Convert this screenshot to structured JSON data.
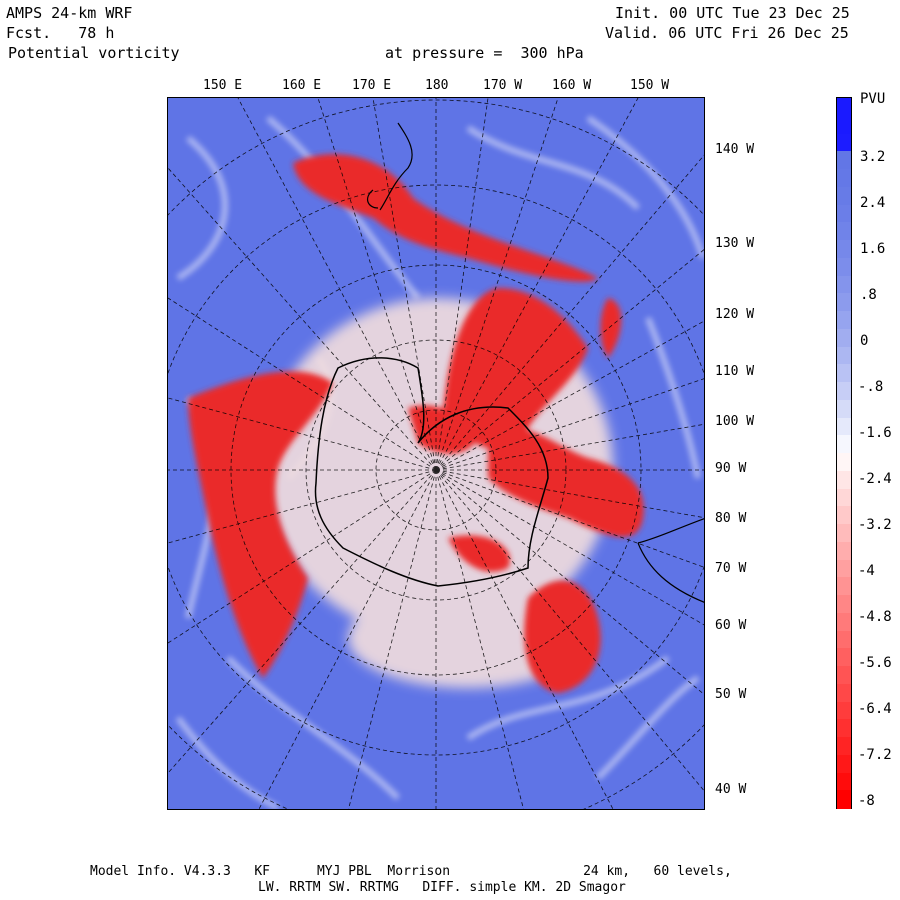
{
  "header": {
    "model": "AMPS 24-km WRF",
    "forecast": "Fcst.   78 h",
    "field": "Potential vorticity",
    "pressure": "at pressure =  300 hPa",
    "init": "Init. 00 UTC Tue 23 Dec 25",
    "valid": "Valid. 06 UTC Fri 26 Dec 25"
  },
  "top_longitudes": [
    "150 E",
    "160 E",
    "170 E",
    "180",
    "170 W",
    "160 W",
    "150 W"
  ],
  "right_longitudes": [
    "140 W",
    "130 W",
    "120 W",
    "110 W",
    "100 W",
    "90 W",
    "80 W",
    "70 W",
    "60 W",
    "50 W",
    "40 W"
  ],
  "colorbar": {
    "units": "PVU",
    "labels": [
      "3.2",
      "2.4",
      "1.6",
      ".8",
      "0",
      "-.8",
      "-1.6",
      "-2.4",
      "-3.2",
      "-4",
      "-4.8",
      "-5.6",
      "-6.4",
      "-7.2",
      "-8"
    ],
    "high_color": "#1a1aff",
    "mid_color": "#ffffff",
    "low_color": "#ff0000",
    "background_color": "#5f74e6"
  },
  "footer": {
    "line1": "Model Info. V4.3.3   KF      MYJ PBL  Morrison                 24 km,   60 levels,",
    "line2": "LW. RRTM SW. RRTMG   DIFF. simple KM. 2D Smagor"
  }
}
